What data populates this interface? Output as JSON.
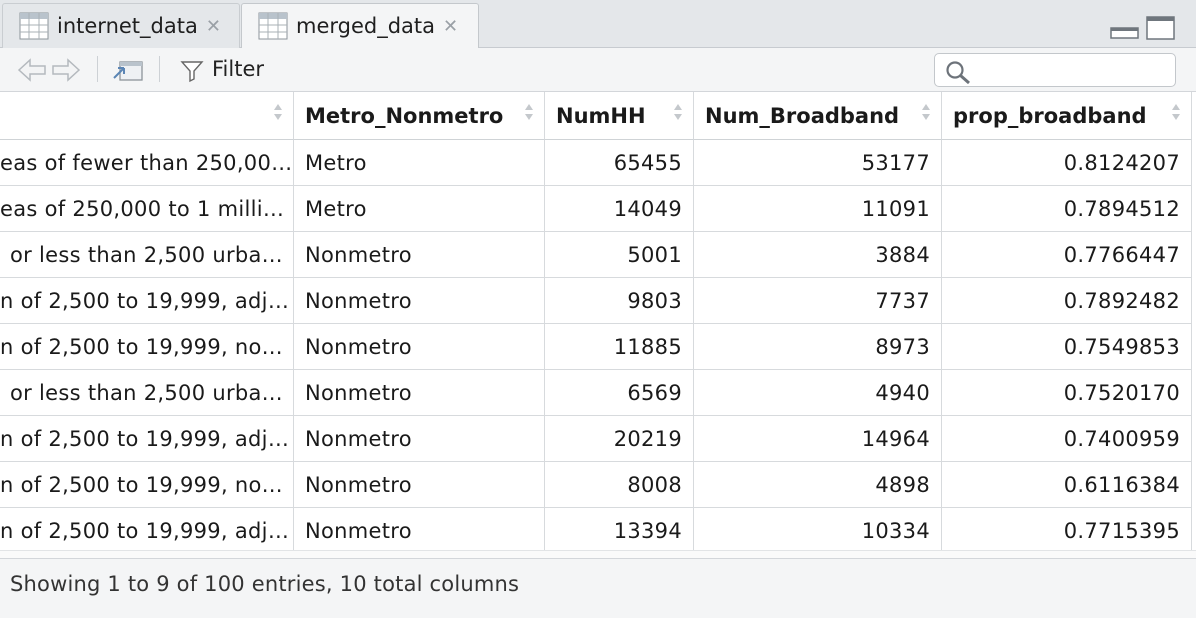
{
  "tabs": [
    {
      "label": "internet_data",
      "active": false
    },
    {
      "label": "merged_data",
      "active": true
    }
  ],
  "toolbar": {
    "filter_label": "Filter"
  },
  "search": {
    "placeholder": ""
  },
  "table": {
    "columns": [
      "",
      "Metro_Nonmetro",
      "NumHH",
      "Num_Broadband",
      "prop_broadband"
    ],
    "rows": [
      [
        "eas of fewer than 250,00…",
        "Metro",
        "65455",
        "53177",
        "0.8124207"
      ],
      [
        "eas of 250,000 to 1 milli…",
        "Metro",
        "14049",
        "11091",
        "0.7894512"
      ],
      [
        "or less than 2,500 urba…",
        "Nonmetro",
        "5001",
        "3884",
        "0.7766447"
      ],
      [
        "n of 2,500 to 19,999, adj…",
        "Nonmetro",
        "9803",
        "7737",
        "0.7892482"
      ],
      [
        "n of 2,500 to 19,999, no…",
        "Nonmetro",
        "11885",
        "8973",
        "0.7549853"
      ],
      [
        "or less than 2,500 urba…",
        "Nonmetro",
        "6569",
        "4940",
        "0.7520170"
      ],
      [
        "n of 2,500 to 19,999, adj…",
        "Nonmetro",
        "20219",
        "14964",
        "0.7400959"
      ],
      [
        "n of 2,500 to 19,999, no…",
        "Nonmetro",
        "8008",
        "4898",
        "0.6116384"
      ],
      [
        "n of 2,500 to 19,999, adj…",
        "Nonmetro",
        "13394",
        "10334",
        "0.7715395"
      ]
    ]
  },
  "footer": {
    "status": "Showing 1 to 9 of 100 entries, 10 total columns"
  },
  "colors": {
    "tab_bg": "#e4e7ea",
    "toolbar_bg": "#f4f5f6",
    "grid_line": "#d7dadd"
  }
}
